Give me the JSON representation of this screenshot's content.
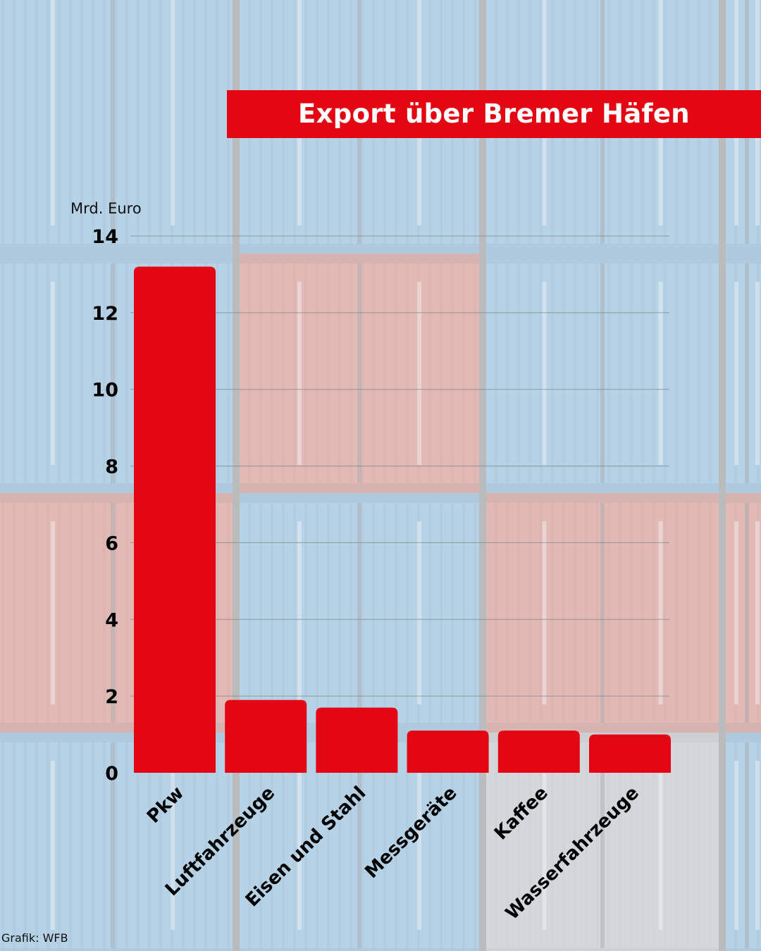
{
  "colors": {
    "accent": "#e30613",
    "title_text": "#ffffff",
    "text": "#000000"
  },
  "title": "Export über Bremer Häfen",
  "source": "Grafik: WFB",
  "chart_data": {
    "type": "bar",
    "title": "Export über Bremer Häfen",
    "ylabel": "Mrd. Euro",
    "xlabel": "",
    "ylim": [
      0,
      14
    ],
    "yticks": [
      0,
      2,
      4,
      6,
      8,
      10,
      12,
      14
    ],
    "grid": true,
    "categories": [
      "Pkw",
      "Luftfahrzeuge",
      "Eisen und Stahl",
      "Messgeräte",
      "Kaffee",
      "Wasserfahrzeuge"
    ],
    "values": [
      13.2,
      1.9,
      1.7,
      1.1,
      1.1,
      1.0
    ]
  }
}
